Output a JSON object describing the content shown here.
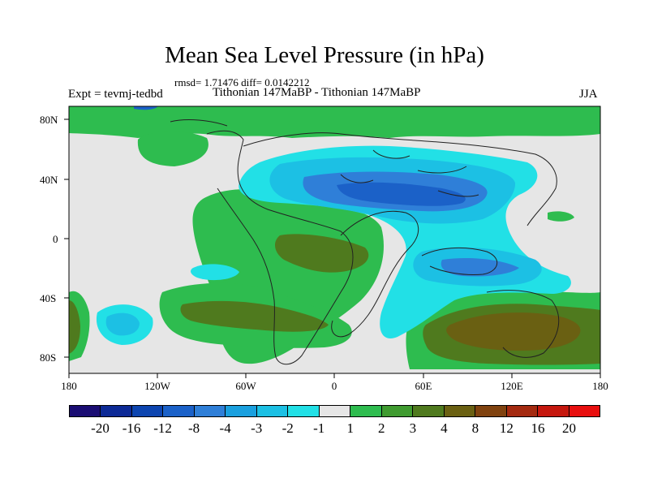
{
  "title": "Mean Sea Level Pressure (in hPa)",
  "stats": "rmsd= 1.71476 diff= 0.0142212",
  "experiment": "Expt = tevmj-tedbd",
  "subtitle": "Tithonian 147MaBP - Tithonian 147MaBP",
  "season": "JJA",
  "axes": {
    "lat_ticks": [
      "80N",
      "40N",
      "0",
      "40S",
      "80S"
    ],
    "lon_ticks": [
      "180",
      "120W",
      "60W",
      "0",
      "60E",
      "120E",
      "180"
    ]
  },
  "colorbar": {
    "labels": [
      "-20",
      "-16",
      "-12",
      "-8",
      "-4",
      "-3",
      "-2",
      "-1",
      "1",
      "2",
      "3",
      "4",
      "8",
      "12",
      "16",
      "20"
    ],
    "colors": [
      "#1a0d73",
      "#0d2a96",
      "#0d45b0",
      "#1b61c8",
      "#2f7fd8",
      "#1aa0df",
      "#1cc0e4",
      "#22e0e6",
      "#e6e6e6",
      "#2ebc4f",
      "#3f9b30",
      "#4f7a1e",
      "#6a6012",
      "#80420f",
      "#a42a10",
      "#c5170e",
      "#e80f0f"
    ]
  }
}
